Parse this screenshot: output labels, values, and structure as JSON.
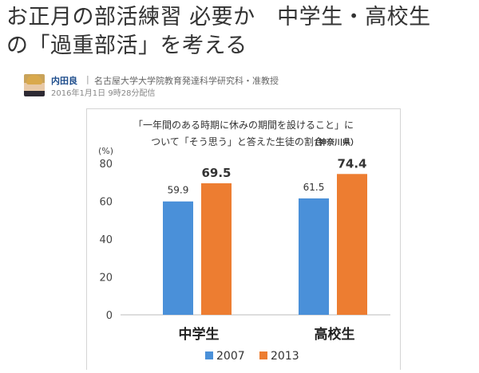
{
  "article": {
    "title_line1": "お正月の部活練習 必要か　中学生・高校生",
    "title_line2": "の「過重部活」を考える",
    "author": "内田良",
    "separator": "|",
    "affiliation": "名古屋大学大学院教育発達科学研究科・准教授",
    "date": "2016年1月1日 9時28分配信"
  },
  "chart_data": {
    "type": "bar",
    "title_line1": "「一年間のある時期に休みの期間を設けること」に",
    "title_line2": "ついて「そう思う」と答えた生徒の割合",
    "title_note": "（神奈川県）",
    "ylabel": "(%)",
    "ylim": [
      0,
      80
    ],
    "yticks": [
      0,
      20,
      40,
      60,
      80
    ],
    "categories": [
      "中学生",
      "高校生"
    ],
    "series": [
      {
        "name": "2007",
        "values": [
          59.9,
          61.5
        ],
        "color": "#4a90d9"
      },
      {
        "name": "2013",
        "values": [
          69.5,
          74.4
        ],
        "color": "#ed7d31"
      }
    ],
    "legend_position": "bottom",
    "grid": false
  }
}
